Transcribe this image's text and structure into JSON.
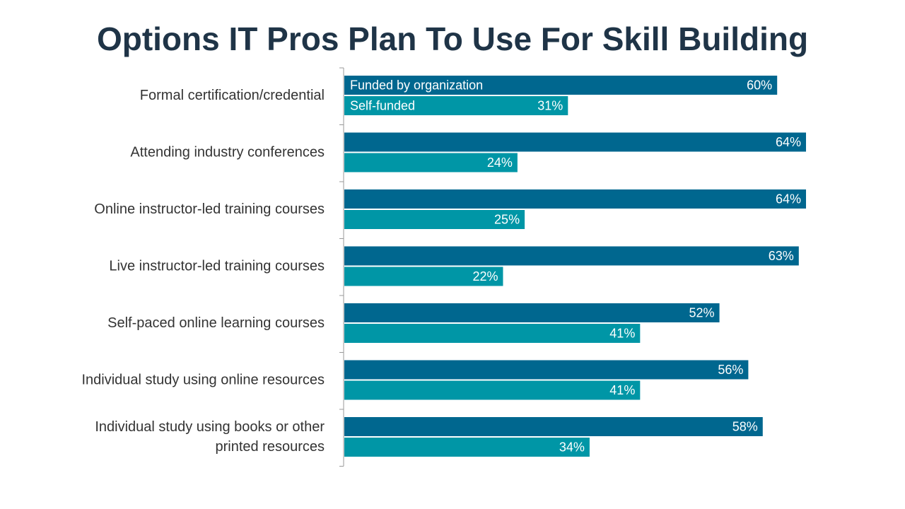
{
  "chart_data": {
    "type": "bar",
    "orientation": "horizontal",
    "title": "Options IT Pros Plan To Use For Skill Building",
    "categories": [
      [
        "Formal certification/credential"
      ],
      [
        "Attending industry conferences"
      ],
      [
        "Online instructor-led training courses"
      ],
      [
        "Live instructor-led training courses"
      ],
      [
        "Self-paced online learning courses"
      ],
      [
        "Individual study using online resources"
      ],
      [
        "Individual study using books or other",
        "printed resources"
      ]
    ],
    "series": [
      {
        "name": "Funded by organization",
        "color": "#00678f",
        "values": [
          60,
          64,
          64,
          63,
          52,
          56,
          58
        ],
        "labels": [
          "60%",
          "64%",
          "64%",
          "63%",
          "52%",
          "56%",
          "58%"
        ]
      },
      {
        "name": "Self-funded",
        "color": "#0096a6",
        "values": [
          31,
          24,
          25,
          22,
          41,
          41,
          34
        ],
        "labels": [
          "31%",
          "24%",
          "25%",
          "22%",
          "41%",
          "41%",
          "34%"
        ]
      }
    ],
    "xlim": [
      0,
      64
    ],
    "grid": false,
    "legend": "inside-first-bars"
  },
  "colors": {
    "title": "#1f3447",
    "axis": "#999999"
  }
}
